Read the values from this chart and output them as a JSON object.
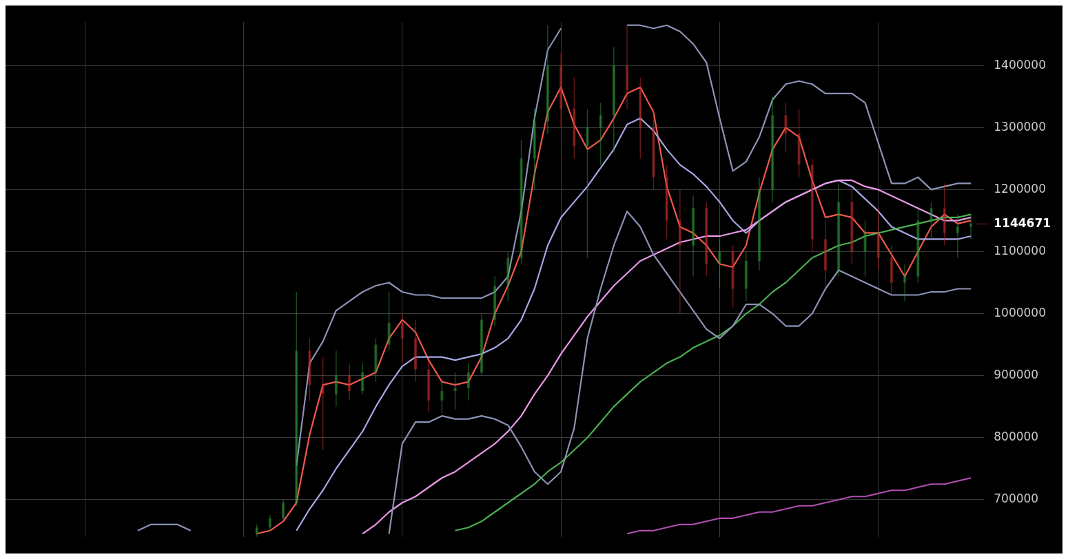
{
  "chart_data": {
    "type": "candlestick",
    "categories": [
      null,
      null,
      null,
      null,
      null,
      null,
      null,
      null,
      null,
      null,
      null,
      null,
      null,
      null,
      null,
      null,
      null,
      null,
      null,
      null,
      null,
      null,
      null,
      null,
      null,
      null,
      null,
      null,
      null,
      null,
      null,
      null,
      null,
      null,
      null,
      null,
      null,
      null,
      null,
      null,
      null,
      null,
      null,
      null,
      null,
      null,
      null,
      null,
      null,
      null,
      null,
      null,
      null,
      null,
      null,
      null,
      null,
      null,
      null,
      null,
      null,
      null,
      null,
      null,
      null,
      null,
      null,
      null,
      null,
      null,
      null,
      null,
      null,
      null,
      null
    ],
    "ohlc": [
      null,
      null,
      null,
      null,
      null,
      null,
      null,
      null,
      null,
      null,
      null,
      null,
      null,
      null,
      null,
      null,
      null,
      null,
      null,
      [
        645000,
        660000,
        640000,
        655000
      ],
      [
        655000,
        675000,
        650000,
        670000
      ],
      [
        670000,
        700000,
        665000,
        695000
      ],
      [
        695000,
        1035000,
        690000,
        940000
      ],
      [
        940000,
        960000,
        860000,
        885000
      ],
      [
        885000,
        930000,
        780000,
        870000
      ],
      [
        870000,
        940000,
        850000,
        900000
      ],
      [
        900000,
        920000,
        860000,
        875000
      ],
      [
        875000,
        920000,
        870000,
        905000
      ],
      [
        905000,
        960000,
        890000,
        950000
      ],
      [
        950000,
        1035000,
        940000,
        985000
      ],
      [
        985000,
        1000000,
        920000,
        960000
      ],
      [
        960000,
        990000,
        890000,
        910000
      ],
      [
        910000,
        925000,
        840000,
        860000
      ],
      [
        860000,
        890000,
        840000,
        875000
      ],
      [
        875000,
        905000,
        845000,
        880000
      ],
      [
        880000,
        920000,
        860000,
        905000
      ],
      [
        905000,
        1000000,
        900000,
        990000
      ],
      [
        990000,
        1060000,
        980000,
        1045000
      ],
      [
        1045000,
        1100000,
        1020000,
        1090000
      ],
      [
        1090000,
        1280000,
        1080000,
        1250000
      ],
      [
        1250000,
        1330000,
        1200000,
        1310000
      ],
      [
        1310000,
        1465000,
        1290000,
        1400000
      ],
      [
        1400000,
        1420000,
        1300000,
        1330000
      ],
      [
        1330000,
        1380000,
        1250000,
        1270000
      ],
      [
        1270000,
        1330000,
        1090000,
        1300000
      ],
      [
        1300000,
        1340000,
        1240000,
        1320000
      ],
      [
        1320000,
        1430000,
        1260000,
        1400000
      ],
      [
        1400000,
        1465000,
        1330000,
        1360000
      ],
      [
        1360000,
        1380000,
        1250000,
        1300000
      ],
      [
        1300000,
        1330000,
        1200000,
        1220000
      ],
      [
        1220000,
        1240000,
        1120000,
        1150000
      ],
      [
        1150000,
        1200000,
        1000000,
        1110000
      ],
      [
        1110000,
        1190000,
        1060000,
        1170000
      ],
      [
        1170000,
        1180000,
        1060000,
        1080000
      ],
      [
        1080000,
        1120000,
        1040000,
        1100000
      ],
      [
        1100000,
        1110000,
        1010000,
        1040000
      ],
      [
        1040000,
        1100000,
        1020000,
        1085000
      ],
      [
        1085000,
        1220000,
        1070000,
        1200000
      ],
      [
        1200000,
        1350000,
        1180000,
        1320000
      ],
      [
        1320000,
        1340000,
        1260000,
        1290000
      ],
      [
        1290000,
        1330000,
        1220000,
        1240000
      ],
      [
        1240000,
        1250000,
        1100000,
        1120000
      ],
      [
        1120000,
        1150000,
        1040000,
        1070000
      ],
      [
        1070000,
        1210000,
        1060000,
        1180000
      ],
      [
        1180000,
        1200000,
        1080000,
        1100000
      ],
      [
        1100000,
        1150000,
        1060000,
        1130000
      ],
      [
        1130000,
        1170000,
        1070000,
        1090000
      ],
      [
        1090000,
        1110000,
        1030000,
        1050000
      ],
      [
        1050000,
        1080000,
        1020000,
        1060000
      ],
      [
        1060000,
        1170000,
        1050000,
        1150000
      ],
      [
        1150000,
        1180000,
        1120000,
        1170000
      ],
      [
        1170000,
        1210000,
        1110000,
        1130000
      ],
      [
        1130000,
        1160000,
        1090000,
        1140000
      ],
      [
        1140000,
        1160000,
        1120000,
        1145000
      ],
      null
    ],
    "colors": [
      null,
      null,
      null,
      null,
      null,
      null,
      null,
      null,
      null,
      null,
      null,
      null,
      null,
      null,
      null,
      null,
      null,
      null,
      null,
      "#2f9e3a",
      "#2f9e3a",
      "#2f9e3a",
      "#2f9e3a",
      "#c8302b",
      "#c8302b",
      "#2f9e3a",
      "#c8302b",
      "#2f9e3a",
      "#2f9e3a",
      "#2f9e3a",
      "#c8302b",
      "#c8302b",
      "#c8302b",
      "#2f9e3a",
      "#2f9e3a",
      "#2f9e3a",
      "#2f9e3a",
      "#2f9e3a",
      "#2f9e3a",
      "#2f9e3a",
      "#2f9e3a",
      "#2f9e3a",
      "#c8302b",
      "#c8302b",
      "#2f9e3a",
      "#2f9e3a",
      "#2f9e3a",
      "#c8302b",
      "#c8302b",
      "#c8302b",
      "#c8302b",
      "#c8302b",
      "#2f9e3a",
      "#c8302b",
      "#2f9e3a",
      "#c8302b",
      "#2f9e3a",
      "#2f9e3a",
      "#2f9e3a",
      "#c8302b",
      "#c8302b",
      "#c8302b",
      "#c8302b",
      "#2f9e3a",
      "#c8302b",
      "#2f9e3a",
      "#c8302b",
      "#c8302b",
      "#2f9e3a",
      "#2f9e3a",
      "#2f9e3a",
      "#c8302b",
      "#2f9e3a",
      "#2f9e3a",
      null
    ],
    "series": [
      {
        "type": "line",
        "color": "#8c93b5",
        "values": [
          null,
          null,
          null,
          null,
          null,
          null,
          null,
          null,
          null,
          null,
          650000,
          660000,
          660000,
          660000,
          650000,
          null,
          null,
          null,
          null,
          null,
          null,
          null,
          755000,
          920000,
          955000,
          1005000,
          1020000,
          1035000,
          1045000,
          1050000,
          1035000,
          1030000,
          1030000,
          1025000,
          1025000,
          1025000,
          1025000,
          1035000,
          1060000,
          1165000,
          1315000,
          1425000,
          1460000,
          null,
          null,
          null,
          null,
          1465000,
          1465000,
          1460000,
          1465000,
          1455000,
          1435000,
          1405000,
          1315000,
          1230000,
          1245000,
          1285000,
          1345000,
          1370000,
          1375000,
          1370000,
          1355000,
          1355000,
          1355000,
          1340000,
          1275000,
          1210000,
          1210000,
          1220000,
          1200000,
          1205000,
          1210000,
          1210000,
          null
        ]
      },
      {
        "type": "line",
        "color": "#8c93b5",
        "values": [
          null,
          null,
          null,
          null,
          null,
          null,
          null,
          null,
          null,
          null,
          null,
          null,
          null,
          null,
          null,
          null,
          null,
          null,
          null,
          null,
          null,
          null,
          null,
          null,
          null,
          null,
          null,
          null,
          null,
          645000,
          790000,
          825000,
          825000,
          835000,
          830000,
          830000,
          835000,
          830000,
          820000,
          785000,
          745000,
          725000,
          745000,
          815000,
          960000,
          1040000,
          1110000,
          1165000,
          1140000,
          1095000,
          1065000,
          1035000,
          1005000,
          975000,
          960000,
          980000,
          1015000,
          1015000,
          1000000,
          980000,
          980000,
          1000000,
          1040000,
          1070000,
          1060000,
          1050000,
          1040000,
          1030000,
          1030000,
          1030000,
          1035000,
          1035000,
          1040000,
          1040000,
          null
        ]
      },
      {
        "type": "line",
        "color": "#b04fb0",
        "values": [
          null,
          null,
          null,
          null,
          null,
          null,
          null,
          null,
          null,
          null,
          null,
          null,
          null,
          null,
          null,
          null,
          null,
          null,
          null,
          null,
          null,
          null,
          null,
          null,
          null,
          null,
          null,
          null,
          null,
          null,
          null,
          null,
          null,
          null,
          null,
          null,
          null,
          null,
          null,
          null,
          null,
          null,
          null,
          null,
          null,
          null,
          null,
          645000,
          650000,
          650000,
          655000,
          660000,
          660000,
          665000,
          670000,
          670000,
          675000,
          680000,
          680000,
          685000,
          690000,
          690000,
          695000,
          700000,
          705000,
          705000,
          710000,
          715000,
          715000,
          720000,
          725000,
          725000,
          730000,
          735000,
          null
        ]
      },
      {
        "type": "line",
        "color": "#4caf50",
        "values": [
          null,
          null,
          null,
          null,
          null,
          null,
          null,
          null,
          null,
          null,
          null,
          null,
          null,
          null,
          null,
          null,
          null,
          null,
          null,
          null,
          null,
          null,
          null,
          null,
          null,
          null,
          null,
          null,
          null,
          null,
          null,
          null,
          null,
          null,
          650000,
          655000,
          665000,
          680000,
          695000,
          710000,
          725000,
          745000,
          760000,
          780000,
          800000,
          825000,
          850000,
          870000,
          890000,
          905000,
          920000,
          930000,
          945000,
          955000,
          965000,
          980000,
          1000000,
          1015000,
          1035000,
          1050000,
          1070000,
          1090000,
          1100000,
          1110000,
          1115000,
          1125000,
          1130000,
          1135000,
          1140000,
          1145000,
          1150000,
          1155000,
          1155000,
          1160000,
          null
        ]
      },
      {
        "type": "line",
        "color": "#e99ae8",
        "values": [
          null,
          null,
          null,
          null,
          null,
          null,
          null,
          null,
          null,
          null,
          null,
          null,
          null,
          null,
          null,
          null,
          null,
          null,
          null,
          null,
          null,
          null,
          null,
          null,
          null,
          null,
          null,
          645000,
          660000,
          680000,
          695000,
          705000,
          720000,
          735000,
          745000,
          760000,
          775000,
          790000,
          810000,
          835000,
          870000,
          900000,
          935000,
          965000,
          995000,
          1020000,
          1045000,
          1065000,
          1085000,
          1095000,
          1105000,
          1115000,
          1120000,
          1125000,
          1125000,
          1130000,
          1135000,
          1150000,
          1165000,
          1180000,
          1190000,
          1200000,
          1210000,
          1215000,
          1215000,
          1205000,
          1200000,
          1190000,
          1180000,
          1170000,
          1160000,
          1150000,
          1150000,
          1155000,
          null
        ]
      },
      {
        "type": "line",
        "color": "#a6a8e6",
        "values": [
          null,
          null,
          null,
          null,
          null,
          null,
          null,
          null,
          null,
          null,
          null,
          null,
          null,
          null,
          null,
          null,
          null,
          null,
          null,
          null,
          null,
          null,
          650000,
          685000,
          715000,
          750000,
          780000,
          810000,
          850000,
          885000,
          915000,
          930000,
          930000,
          930000,
          925000,
          930000,
          935000,
          945000,
          960000,
          990000,
          1040000,
          1110000,
          1155000,
          1180000,
          1205000,
          1235000,
          1265000,
          1305000,
          1315000,
          1295000,
          1265000,
          1240000,
          1225000,
          1205000,
          1180000,
          1150000,
          1130000,
          1150000,
          1165000,
          1180000,
          1190000,
          1200000,
          1210000,
          1215000,
          1205000,
          1185000,
          1165000,
          1140000,
          1130000,
          1120000,
          1120000,
          1120000,
          1120000,
          1125000,
          null
        ]
      },
      {
        "type": "line",
        "color": "#f0584f",
        "values": [
          null,
          null,
          null,
          null,
          null,
          null,
          null,
          null,
          null,
          null,
          null,
          null,
          null,
          null,
          null,
          null,
          null,
          null,
          null,
          645000,
          650000,
          665000,
          695000,
          805000,
          885000,
          890000,
          885000,
          895000,
          905000,
          960000,
          990000,
          970000,
          925000,
          890000,
          885000,
          890000,
          930000,
          1000000,
          1045000,
          1100000,
          1225000,
          1325000,
          1365000,
          1305000,
          1265000,
          1280000,
          1315000,
          1355000,
          1365000,
          1325000,
          1205000,
          1140000,
          1130000,
          1110000,
          1080000,
          1075000,
          1110000,
          1195000,
          1265000,
          1300000,
          1285000,
          1215000,
          1155000,
          1160000,
          1155000,
          1130000,
          1130000,
          1095000,
          1060000,
          1100000,
          1140000,
          1160000,
          1145000,
          1150000,
          null
        ]
      }
    ],
    "ylim": [
      640000,
      1470000
    ],
    "yticks": [
      700000,
      800000,
      900000,
      1000000,
      1100000,
      1200000,
      1300000,
      1400000
    ],
    "grid": true,
    "line_style": "solid",
    "ref_lines": [
      {
        "axis": "y",
        "value": 1144671,
        "label": "1144671",
        "color": "#e0443c",
        "line_style": "dotted"
      }
    ]
  }
}
